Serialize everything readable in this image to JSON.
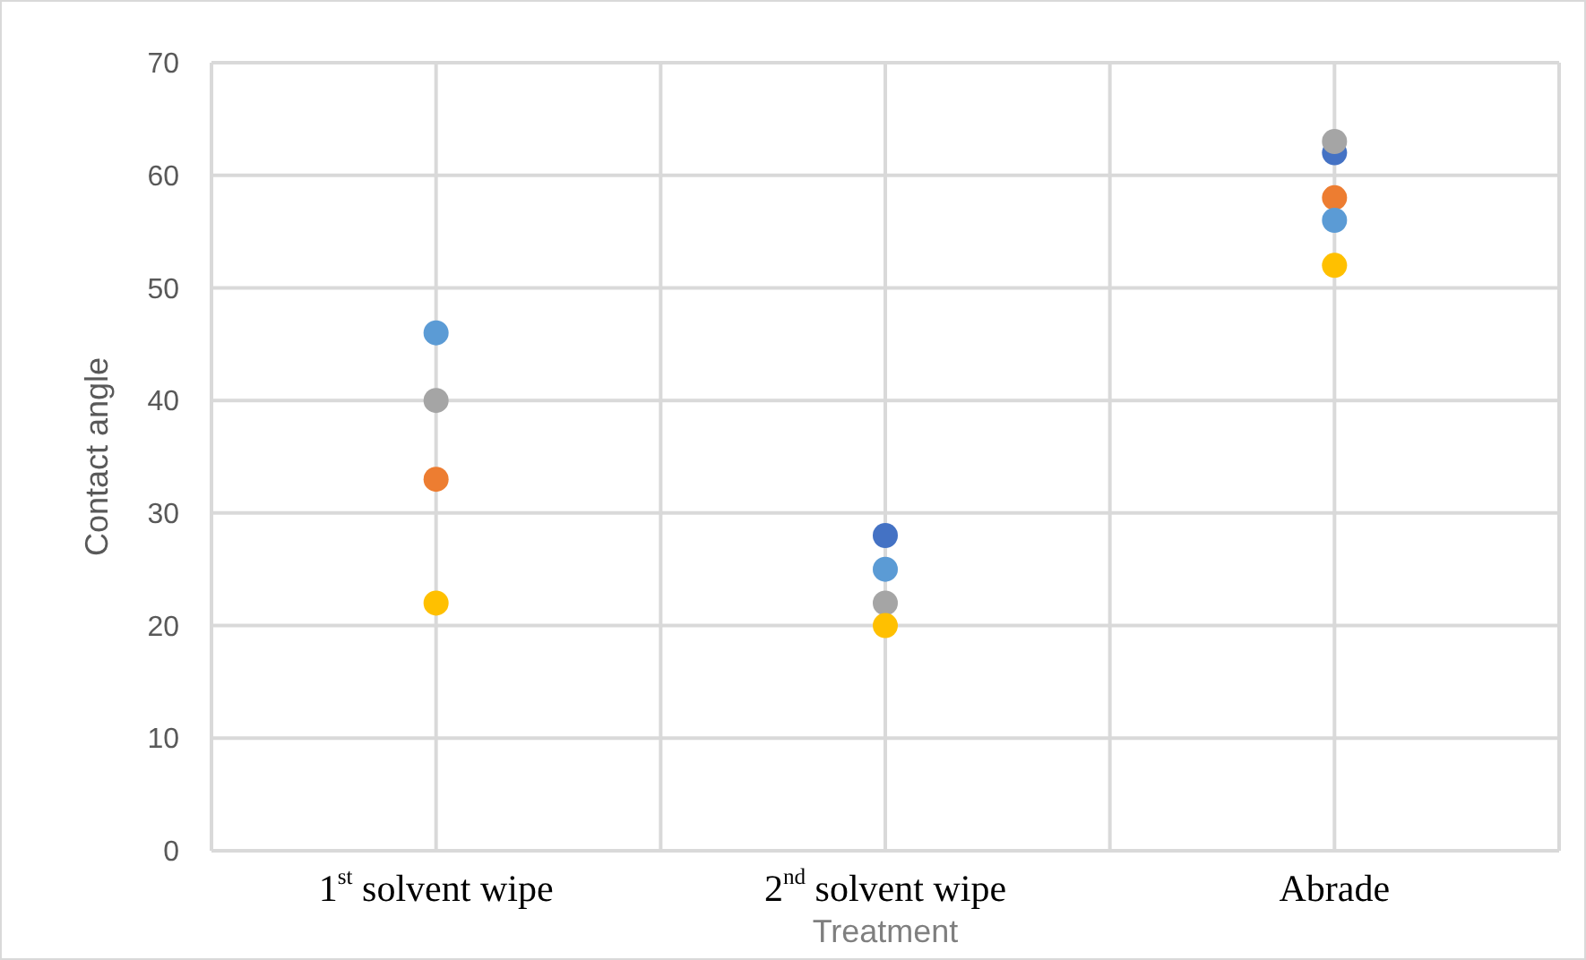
{
  "chart_data": {
    "type": "scatter",
    "xlabel": "Treatment",
    "ylabel": "Contact angle",
    "categories": [
      "1$^{st}$ solvent wipe",
      "2$^{nd}$ solvent wipe",
      "Abrade"
    ],
    "ylim": [
      0,
      70
    ],
    "yticks": [
      0,
      10,
      20,
      30,
      40,
      50,
      60,
      70
    ],
    "grid": true,
    "marker": "circle",
    "series": [
      {
        "color": "#4472c4",
        "values": [
          null,
          28,
          62
        ]
      },
      {
        "color": "#ed7d31",
        "values": [
          33,
          null,
          58
        ]
      },
      {
        "color": "#a5a5a5",
        "values": [
          40,
          22,
          63
        ]
      },
      {
        "color": "#ffc000",
        "values": [
          22,
          20,
          52
        ]
      },
      {
        "color": "#5b9bd5",
        "values": [
          46,
          25,
          56
        ]
      }
    ]
  }
}
